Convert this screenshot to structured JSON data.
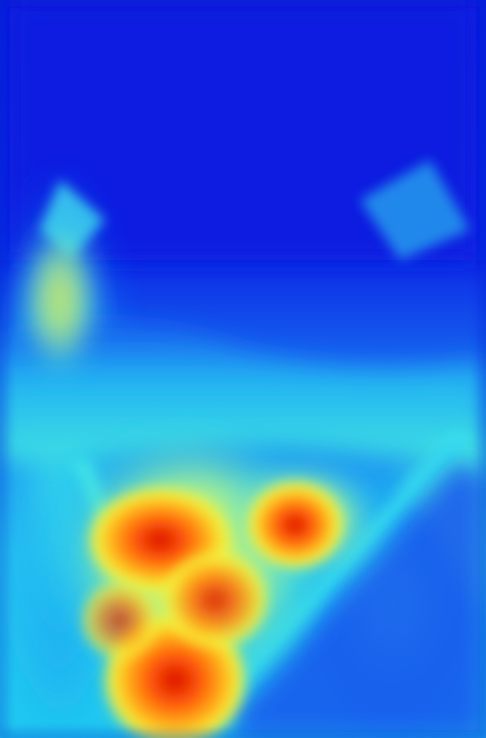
{
  "image": {
    "kind": "false-color heatmap (jet colormap)",
    "colormap": [
      "#0014d8",
      "#0a40f0",
      "#1a8cf5",
      "#22d6f2",
      "#8ef0a8",
      "#f5f23c",
      "#ffb21a",
      "#ff5a0a",
      "#d80a00"
    ]
  }
}
